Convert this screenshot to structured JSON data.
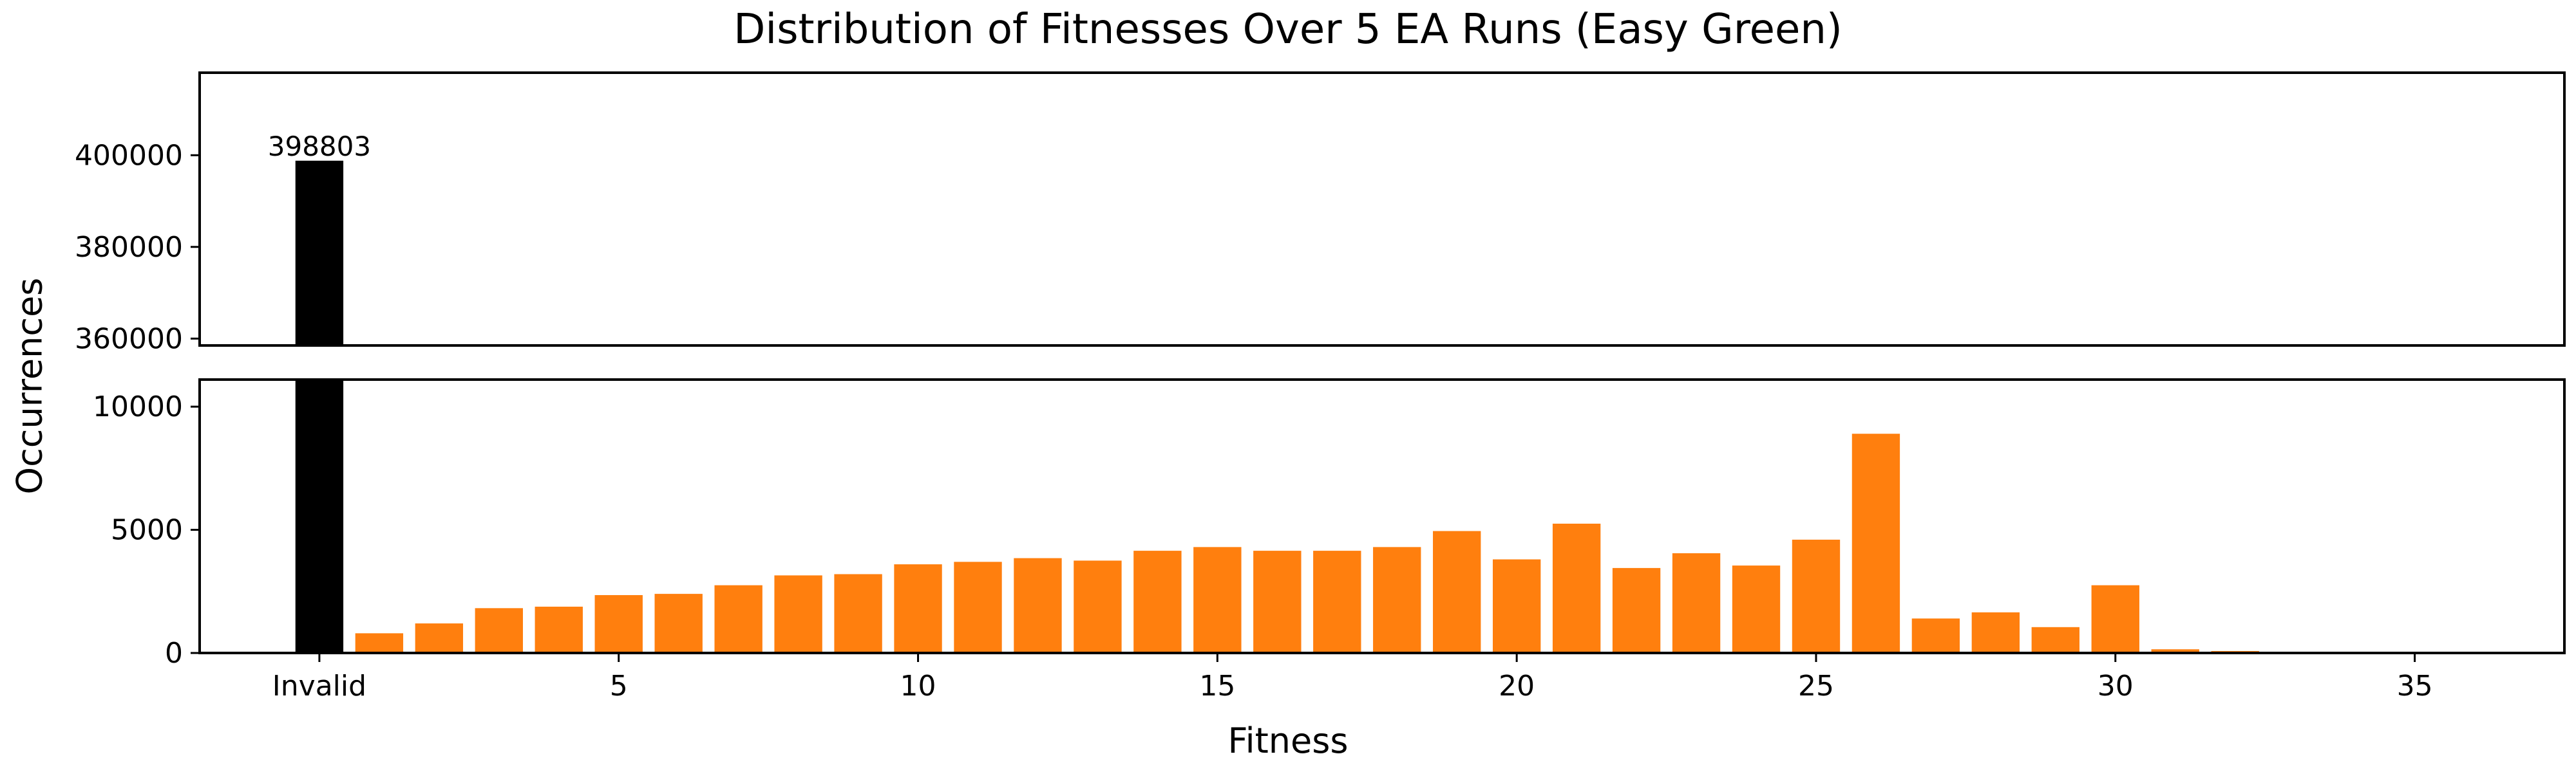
{
  "chart_data": {
    "type": "bar",
    "layout": "broken-y-axis",
    "title": "Distribution of Fitnesses Over 5 EA Runs (Easy Green)",
    "xlabel": "Fitness",
    "ylabel": "Occurrences",
    "grid": false,
    "legend": "none",
    "colors": {
      "invalid": "#000000",
      "valid": "#ff7f0e"
    },
    "x_ticks": [
      {
        "value": 0,
        "label": "Invalid"
      },
      {
        "value": 5,
        "label": "5"
      },
      {
        "value": 10,
        "label": "10"
      },
      {
        "value": 15,
        "label": "15"
      },
      {
        "value": 20,
        "label": "20"
      },
      {
        "value": 25,
        "label": "25"
      },
      {
        "value": 30,
        "label": "30"
      },
      {
        "value": 35,
        "label": "35"
      }
    ],
    "xlim": [
      -2,
      37.5
    ],
    "top_panel": {
      "ylim": [
        358500,
        418000
      ],
      "yticks": [
        360000,
        380000,
        400000
      ]
    },
    "bottom_panel": {
      "ylim": [
        0,
        11100
      ],
      "yticks": [
        0,
        5000,
        10000
      ]
    },
    "annotations": [
      {
        "x": 0,
        "value": 398803,
        "text": "398803"
      }
    ],
    "bars": [
      {
        "x": 0,
        "category": "Invalid",
        "value": 398803,
        "kind": "invalid"
      },
      {
        "x": 1,
        "value": 800,
        "kind": "valid"
      },
      {
        "x": 2,
        "value": 1200,
        "kind": "valid"
      },
      {
        "x": 3,
        "value": 1820,
        "kind": "valid"
      },
      {
        "x": 4,
        "value": 1880,
        "kind": "valid"
      },
      {
        "x": 5,
        "value": 2350,
        "kind": "valid"
      },
      {
        "x": 6,
        "value": 2400,
        "kind": "valid"
      },
      {
        "x": 7,
        "value": 2750,
        "kind": "valid"
      },
      {
        "x": 8,
        "value": 3150,
        "kind": "valid"
      },
      {
        "x": 9,
        "value": 3200,
        "kind": "valid"
      },
      {
        "x": 10,
        "value": 3600,
        "kind": "valid"
      },
      {
        "x": 11,
        "value": 3700,
        "kind": "valid"
      },
      {
        "x": 12,
        "value": 3850,
        "kind": "valid"
      },
      {
        "x": 13,
        "value": 3750,
        "kind": "valid"
      },
      {
        "x": 14,
        "value": 4150,
        "kind": "valid"
      },
      {
        "x": 15,
        "value": 4300,
        "kind": "valid"
      },
      {
        "x": 16,
        "value": 4150,
        "kind": "valid"
      },
      {
        "x": 17,
        "value": 4150,
        "kind": "valid"
      },
      {
        "x": 18,
        "value": 4300,
        "kind": "valid"
      },
      {
        "x": 19,
        "value": 4950,
        "kind": "valid"
      },
      {
        "x": 20,
        "value": 3800,
        "kind": "valid"
      },
      {
        "x": 21,
        "value": 5250,
        "kind": "valid"
      },
      {
        "x": 22,
        "value": 3450,
        "kind": "valid"
      },
      {
        "x": 23,
        "value": 4050,
        "kind": "valid"
      },
      {
        "x": 24,
        "value": 3550,
        "kind": "valid"
      },
      {
        "x": 25,
        "value": 4600,
        "kind": "valid"
      },
      {
        "x": 26,
        "value": 8900,
        "kind": "valid"
      },
      {
        "x": 27,
        "value": 1400,
        "kind": "valid"
      },
      {
        "x": 28,
        "value": 1650,
        "kind": "valid"
      },
      {
        "x": 29,
        "value": 1050,
        "kind": "valid"
      },
      {
        "x": 30,
        "value": 2750,
        "kind": "valid"
      },
      {
        "x": 31,
        "value": 150,
        "kind": "valid"
      },
      {
        "x": 32,
        "value": 80,
        "kind": "valid"
      }
    ]
  }
}
